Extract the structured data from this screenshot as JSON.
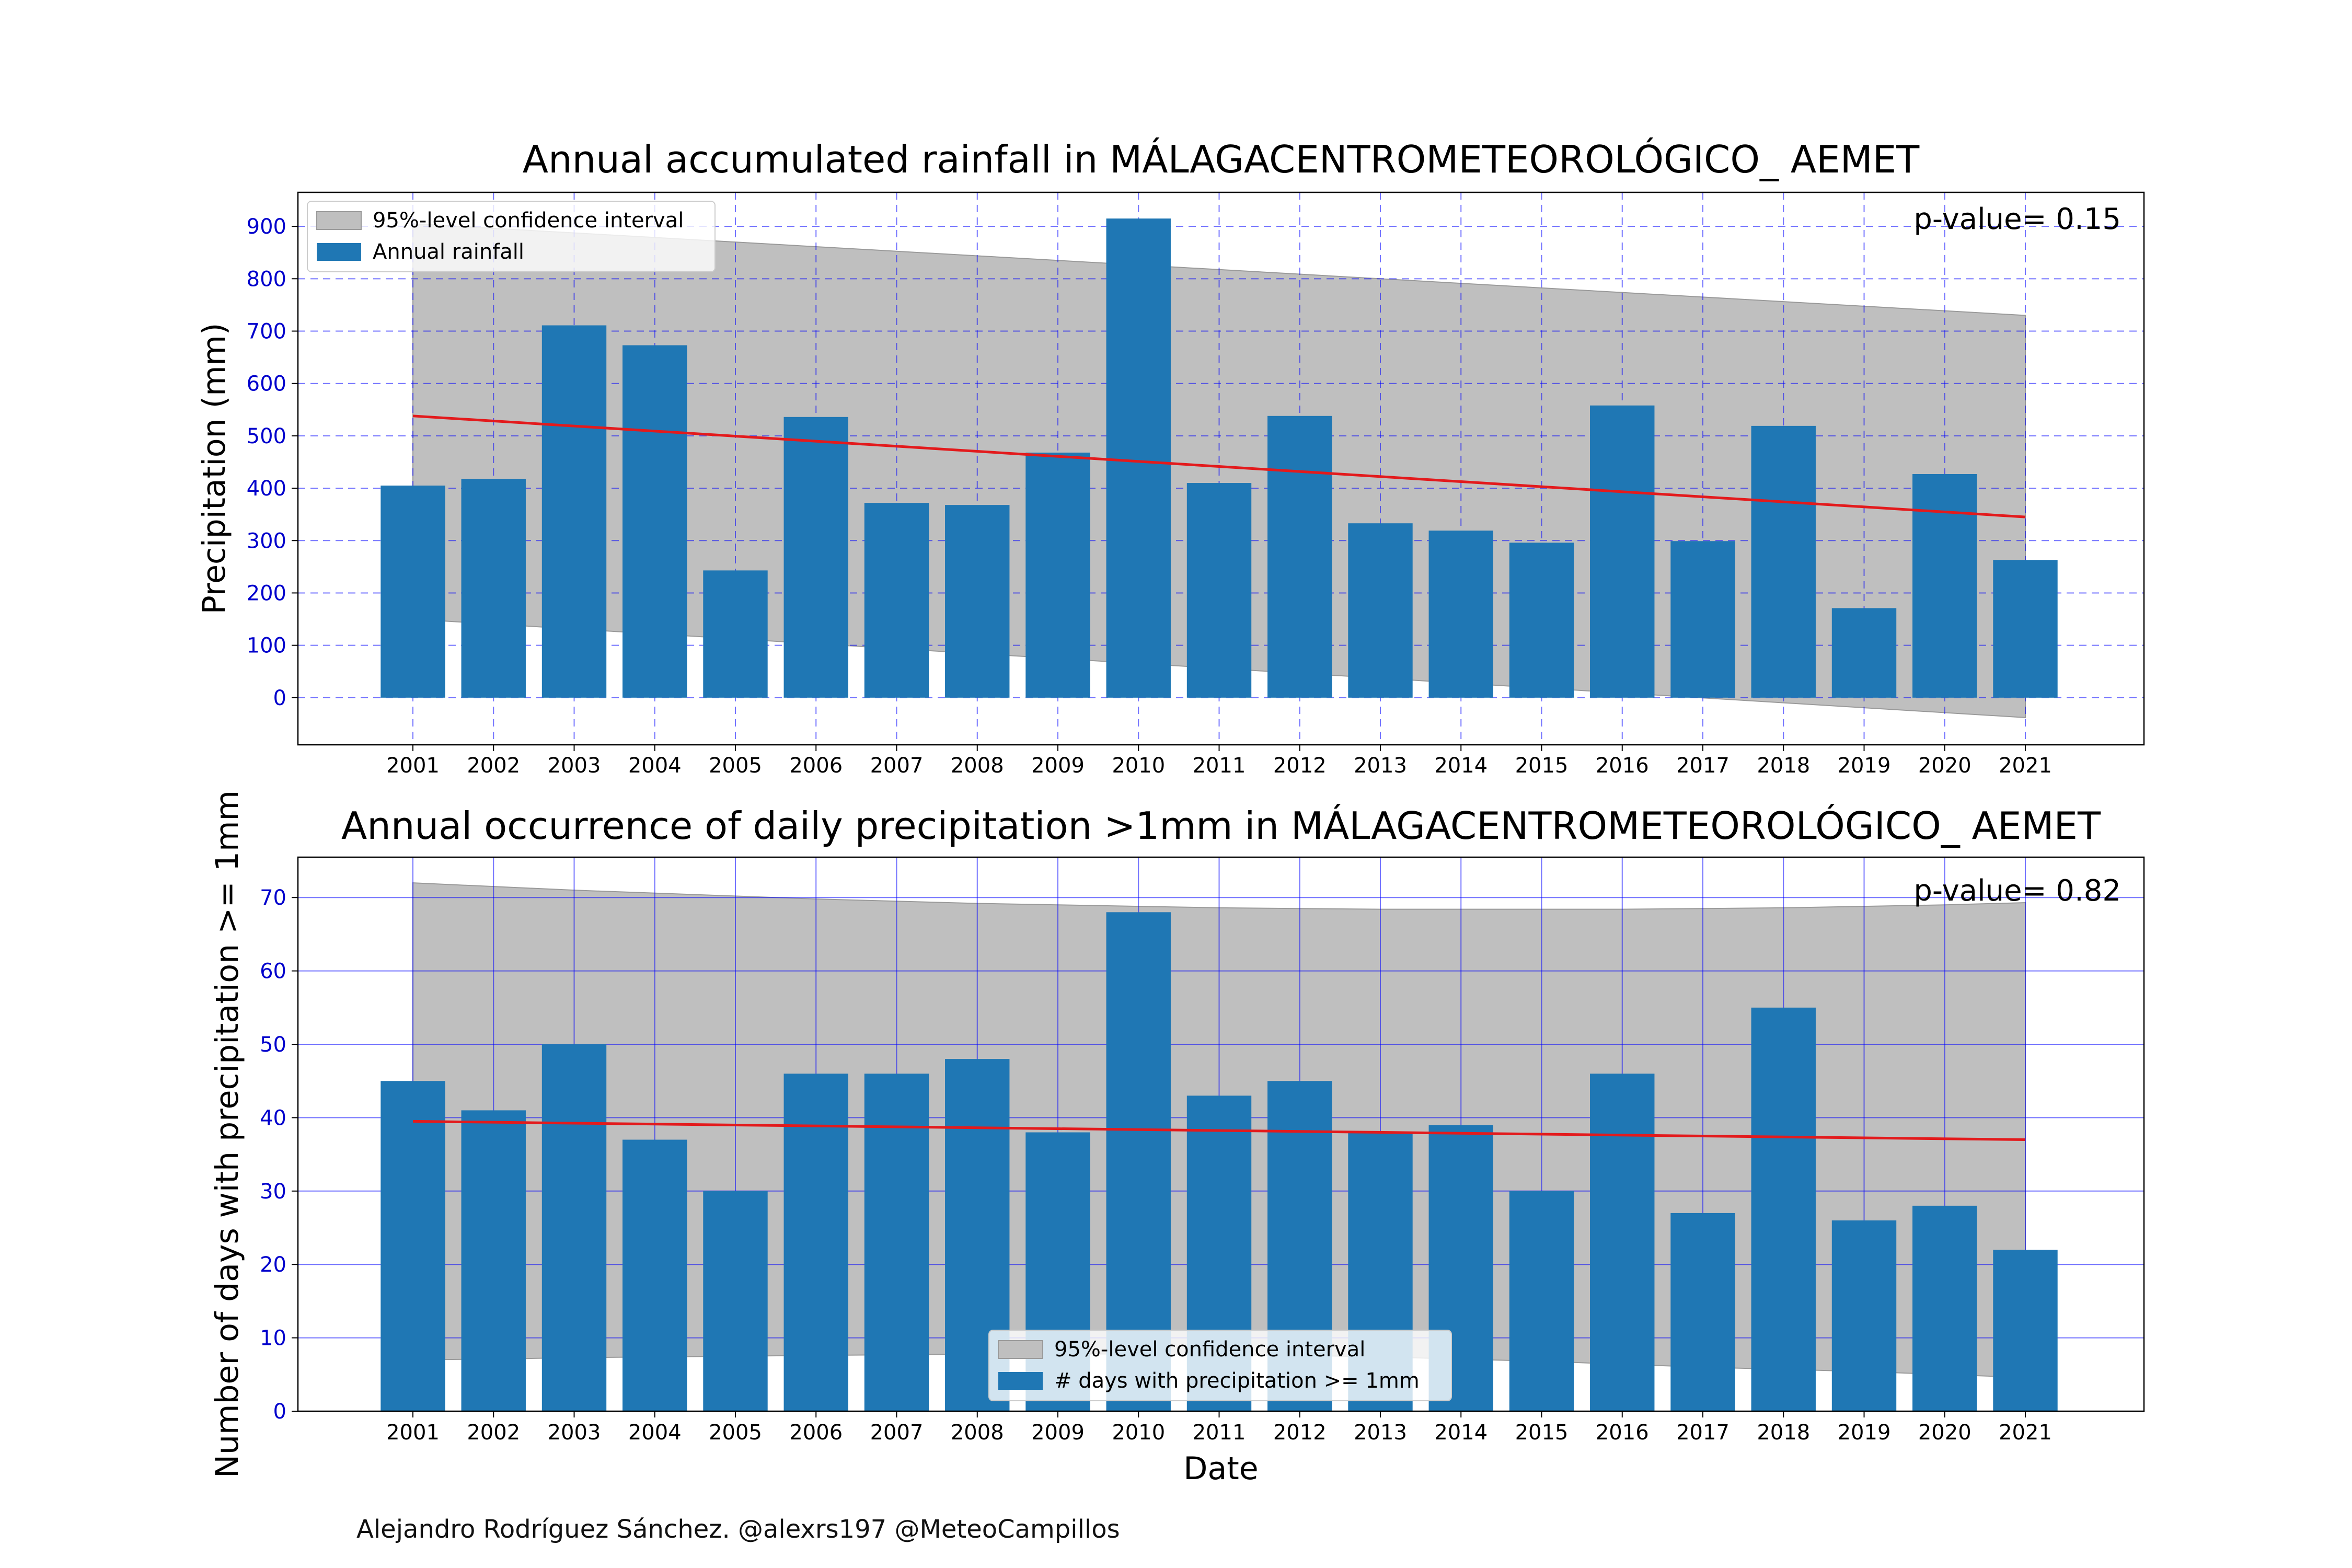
{
  "chart_data": [
    {
      "type": "bar",
      "title": "Annual accumulated rainfall in MÁLAGACENTROMETEOROLÓGICO_ AEMET",
      "xlabel": "",
      "ylabel": "Precipitation (mm)",
      "categories": [
        "2001",
        "2002",
        "2003",
        "2004",
        "2005",
        "2006",
        "2007",
        "2008",
        "2009",
        "2010",
        "2011",
        "2012",
        "2013",
        "2014",
        "2015",
        "2016",
        "2017",
        "2018",
        "2019",
        "2020",
        "2021"
      ],
      "values": [
        405,
        418,
        711,
        673,
        243,
        536,
        372,
        368,
        468,
        915,
        410,
        538,
        333,
        319,
        296,
        558,
        299,
        519,
        171,
        427,
        263
      ],
      "yticks": [
        0,
        100,
        200,
        300,
        400,
        500,
        600,
        700,
        800,
        900
      ],
      "ylim": [
        -90,
        965
      ],
      "trend": {
        "start": 538,
        "end": 345
      },
      "ci_upper": {
        "start": 905,
        "end": 730
      },
      "ci_lower": {
        "start": 150,
        "end": -38
      },
      "pvalue_text": "p-value= 0.15",
      "legend": [
        "95%-level confidence interval",
        "Annual rainfall"
      ],
      "legend_position": "upper left",
      "grid": "dashed",
      "bar_color": "#1f77b4",
      "trend_color": "#e31a1c",
      "ci_color": "#bfbfbf",
      "grid_color": "#0000ff"
    },
    {
      "type": "bar",
      "title": "Annual occurrence of daily precipitation >1mm in MÁLAGACENTROMETEOROLÓGICO_ AEMET",
      "xlabel": "Date",
      "ylabel": "Number of days with precipitation >= 1mm",
      "categories": [
        "2001",
        "2002",
        "2003",
        "2004",
        "2005",
        "2006",
        "2007",
        "2008",
        "2009",
        "2010",
        "2011",
        "2012",
        "2013",
        "2014",
        "2015",
        "2016",
        "2017",
        "2018",
        "2019",
        "2020",
        "2021"
      ],
      "values": [
        45,
        41,
        50,
        37,
        30,
        46,
        46,
        48,
        38,
        68,
        43,
        45,
        38,
        39,
        30,
        46,
        27,
        55,
        26,
        28,
        22
      ],
      "yticks": [
        0,
        10,
        20,
        30,
        40,
        50,
        60,
        70
      ],
      "ylim": [
        0,
        75.5
      ],
      "trend": {
        "start": 39.5,
        "end": 37.0
      },
      "ci_upper": [
        72.0,
        71.5,
        71.0,
        70.6,
        70.2,
        69.8,
        69.5,
        69.2,
        69.0,
        68.8,
        68.6,
        68.5,
        68.4,
        68.4,
        68.4,
        68.4,
        68.5,
        68.6,
        68.8,
        69.0,
        69.3
      ],
      "ci_lower": [
        7.0,
        7.1,
        7.3,
        7.4,
        7.5,
        7.6,
        7.7,
        7.8,
        7.8,
        7.8,
        7.7,
        7.6,
        7.4,
        7.1,
        6.8,
        6.4,
        6.0,
        5.7,
        5.4,
        5.0,
        4.6
      ],
      "pvalue_text": "p-value= 0.82",
      "legend": [
        "95%-level confidence interval",
        "# days with precipitation >= 1mm"
      ],
      "legend_position": "lower center",
      "grid": "solid",
      "bar_color": "#1f77b4",
      "trend_color": "#e31a1c",
      "ci_color": "#bfbfbf",
      "grid_color": "#0000ff"
    }
  ],
  "credit": "Alejandro Rodríguez Sánchez. @alexrs197 @MeteoCampillos"
}
